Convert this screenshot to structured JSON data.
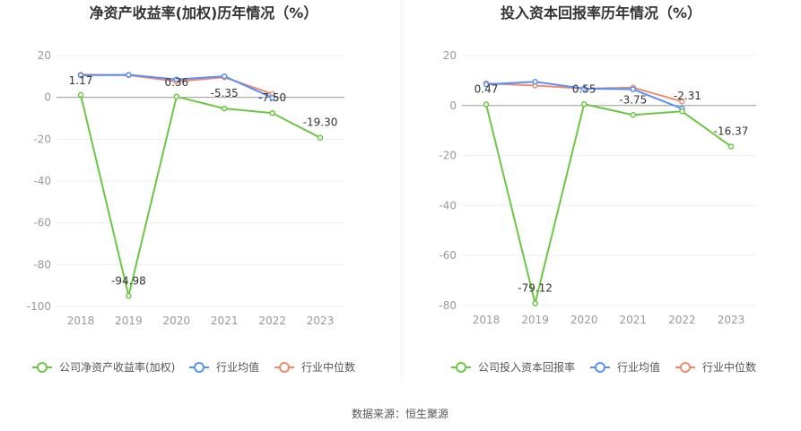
{
  "source_label": "数据来源：恒生聚源",
  "colors": {
    "company": "#6cc844",
    "industry_avg": "#5b8ff9",
    "industry_median": "#f08c6c",
    "grid": "#eeeeee",
    "zero_axis": "#999999"
  },
  "chart_data": [
    {
      "type": "line",
      "title": "净资产收益率(加权)历年情况（%）",
      "categories": [
        "2018",
        "2019",
        "2020",
        "2021",
        "2022",
        "2023"
      ],
      "ylim": [
        -100,
        20
      ],
      "yticks": [
        20,
        0,
        -20,
        -40,
        -60,
        -80,
        -100
      ],
      "series": [
        {
          "name": "公司净资产收益率(加权)",
          "values": [
            1.17,
            -94.98,
            0.36,
            -5.35,
            -7.5,
            -19.3
          ],
          "labels": [
            "1.17",
            "-94.98",
            "0.36",
            "-5.35",
            "-7.50",
            "-19.30"
          ]
        },
        {
          "name": "行业均值",
          "values": [
            10.5,
            10.8,
            8.6,
            10.1,
            -0.2,
            null
          ]
        },
        {
          "name": "行业中位数",
          "values": [
            10.9,
            10.6,
            7.6,
            9.6,
            1.6,
            null
          ]
        }
      ]
    },
    {
      "type": "line",
      "title": "投入资本回报率历年情况（%）",
      "categories": [
        "2018",
        "2019",
        "2020",
        "2021",
        "2022",
        "2023"
      ],
      "ylim": [
        -80,
        20
      ],
      "yticks": [
        20,
        0,
        -20,
        -40,
        -60,
        -80
      ],
      "series": [
        {
          "name": "公司投入资本回报率",
          "values": [
            0.47,
            -79.12,
            0.55,
            -3.75,
            -2.31,
            -16.37
          ],
          "labels": [
            "0.47",
            "-79.12",
            "0.55",
            "-3.75",
            "-2.31",
            "-16.37"
          ]
        },
        {
          "name": "行业均值",
          "values": [
            8.5,
            9.5,
            6.8,
            6.5,
            -1.2,
            null
          ]
        },
        {
          "name": "行业中位数",
          "values": [
            8.9,
            8.0,
            6.8,
            7.2,
            1.6,
            null
          ]
        }
      ]
    }
  ]
}
